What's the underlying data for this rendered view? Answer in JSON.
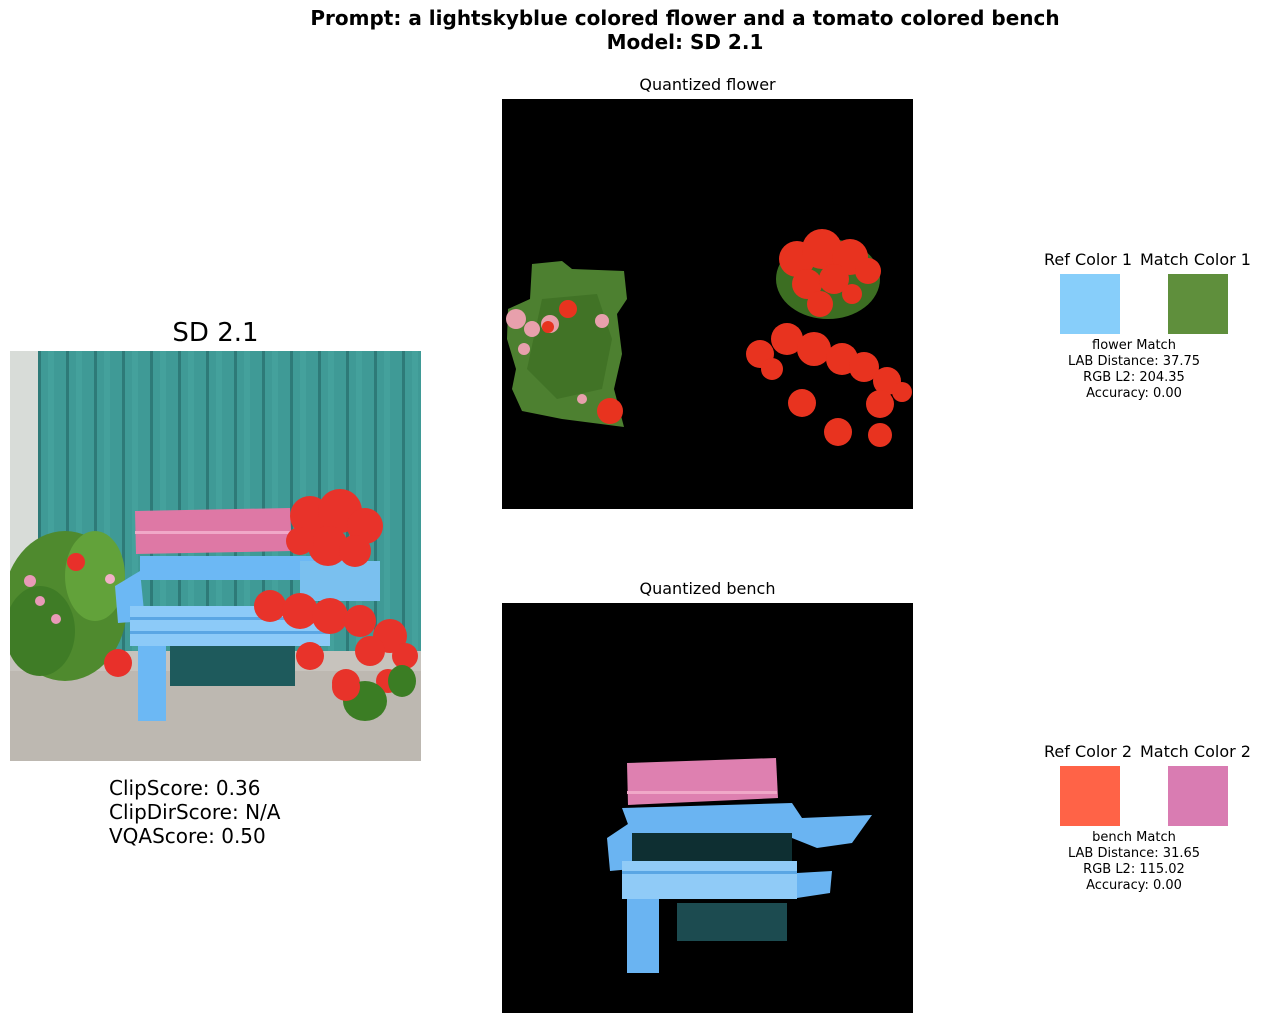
{
  "suptitle": {
    "line1": "Prompt: a lightskyblue colored flower and a tomato colored bench",
    "line2": "Model: SD 2.1"
  },
  "generated": {
    "title": "SD 2.1",
    "scores": {
      "clip": "ClipScore: 0.36",
      "clipdir": "ClipDirScore: N/A",
      "vqa": "VQAScore: 0.50"
    }
  },
  "quantized": {
    "flower_title": "Quantized flower",
    "bench_title": "Quantized bench"
  },
  "matches": [
    {
      "ref_label": "Ref Color 1",
      "match_label": "Match Color 1",
      "ref_color": "#87cefa",
      "match_color": "#5f8f3c",
      "name": "flower Match",
      "lab": "LAB Distance: 37.75",
      "rgb": "RGB L2: 204.35",
      "acc": "Accuracy: 0.00"
    },
    {
      "ref_label": "Ref Color 2",
      "match_label": "Match Color 2",
      "ref_color": "#ff6347",
      "match_color": "#d97cb2",
      "name": "bench Match",
      "lab": "LAB Distance: 31.65",
      "rgb": "RGB L2: 115.02",
      "acc": "Accuracy: 0.00"
    }
  ]
}
